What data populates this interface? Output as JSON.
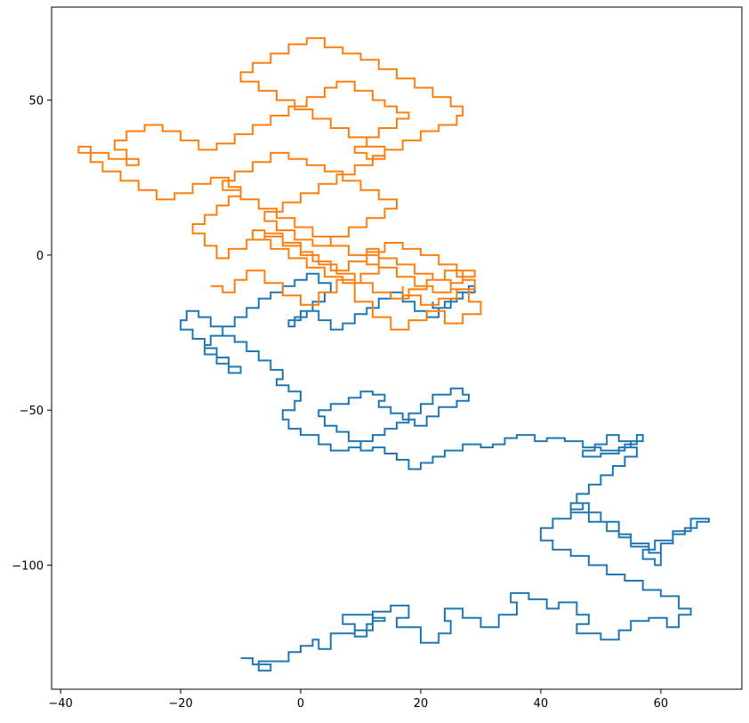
{
  "chart_data": {
    "type": "line",
    "title": "",
    "xlabel": "",
    "ylabel": "",
    "xlim": [
      -41.5,
      73.5
    ],
    "ylim": [
      -140,
      80
    ],
    "xticks": [
      -40,
      -20,
      0,
      20,
      40,
      60
    ],
    "yticks": [
      -100,
      -50,
      0,
      50
    ],
    "grid": false,
    "legend": "none",
    "description": "Two 2-D lattice random walks (unit steps on a square grid), drawn as connected polylines.",
    "series": [
      {
        "color": "#1f77b4",
        "x": [
          -10,
          -8,
          -5,
          -7,
          -2,
          0,
          2,
          3,
          5,
          9,
          7,
          12,
          14,
          12,
          9,
          11,
          12,
          15,
          18,
          16,
          20,
          23,
          25,
          24,
          27,
          30,
          33,
          36,
          35,
          38,
          41,
          43,
          46,
          48,
          46,
          50,
          53,
          55,
          58,
          61,
          63,
          65,
          63,
          60,
          57,
          54,
          51,
          48,
          45,
          42,
          40,
          42,
          45,
          47,
          45,
          48,
          51,
          53,
          55,
          58,
          60,
          62,
          64,
          66,
          68,
          65,
          62,
          59,
          57,
          59,
          60,
          58,
          55,
          53,
          50,
          48,
          46,
          48,
          50,
          52,
          54,
          56,
          55,
          53,
          51,
          49,
          47,
          50,
          53,
          55,
          57,
          56,
          54,
          50,
          47,
          44,
          41,
          39,
          36,
          34,
          32,
          30,
          27,
          24,
          22,
          20,
          18,
          16,
          14,
          12,
          10,
          8,
          6,
          4,
          3,
          5,
          8,
          10,
          12,
          14,
          13,
          15,
          17,
          19,
          21,
          23,
          26,
          28,
          27,
          25,
          22,
          20,
          18,
          16,
          14,
          12,
          10,
          8,
          5,
          3,
          0,
          -2,
          -3,
          -1,
          0,
          -2,
          -4,
          -3,
          -5,
          -7,
          -9,
          -11,
          -13,
          -15,
          -17,
          -19,
          -20,
          -18,
          -16,
          -14,
          -12,
          -10,
          -12,
          -14,
          -16,
          -15,
          -13,
          -11,
          -9,
          -7,
          -5,
          -3,
          -1,
          1,
          3,
          5,
          4,
          2,
          0,
          -2,
          -1,
          1,
          3,
          5,
          7,
          9,
          11,
          13,
          15,
          17,
          19,
          21,
          23,
          25,
          27,
          29,
          28,
          26,
          24,
          22
        ],
        "y": [
          -130,
          -132,
          -134,
          -131,
          -128,
          -126,
          -124,
          -127,
          -122,
          -119,
          -116,
          -118,
          -117,
          -121,
          -123,
          -119,
          -115,
          -113,
          -117,
          -120,
          -125,
          -122,
          -118,
          -114,
          -117,
          -120,
          -116,
          -112,
          -109,
          -111,
          -114,
          -112,
          -116,
          -119,
          -122,
          -124,
          -121,
          -118,
          -117,
          -120,
          -116,
          -114,
          -110,
          -108,
          -105,
          -103,
          -100,
          -97,
          -95,
          -92,
          -88,
          -85,
          -82,
          -80,
          -83,
          -86,
          -89,
          -91,
          -94,
          -96,
          -93,
          -90,
          -88,
          -86,
          -85,
          -89,
          -92,
          -95,
          -98,
          -100,
          -96,
          -93,
          -90,
          -86,
          -83,
          -80,
          -77,
          -74,
          -71,
          -68,
          -65,
          -62,
          -60,
          -58,
          -61,
          -63,
          -65,
          -64,
          -62,
          -60,
          -58,
          -61,
          -63,
          -62,
          -60,
          -59,
          -60,
          -58,
          -59,
          -61,
          -62,
          -61,
          -63,
          -65,
          -67,
          -69,
          -66,
          -64,
          -62,
          -63,
          -60,
          -57,
          -55,
          -52,
          -50,
          -48,
          -46,
          -44,
          -45,
          -47,
          -49,
          -51,
          -53,
          -55,
          -52,
          -49,
          -47,
          -45,
          -43,
          -45,
          -48,
          -51,
          -54,
          -56,
          -58,
          -60,
          -62,
          -63,
          -61,
          -58,
          -56,
          -53,
          -50,
          -47,
          -44,
          -42,
          -40,
          -37,
          -34,
          -31,
          -28,
          -26,
          -23,
          -20,
          -18,
          -21,
          -24,
          -27,
          -30,
          -33,
          -36,
          -38,
          -35,
          -32,
          -29,
          -26,
          -23,
          -20,
          -17,
          -14,
          -12,
          -10,
          -8,
          -6,
          -9,
          -12,
          -15,
          -18,
          -21,
          -23,
          -20,
          -18,
          -21,
          -24,
          -22,
          -19,
          -17,
          -14,
          -12,
          -15,
          -18,
          -20,
          -17,
          -14,
          -12,
          -10,
          -12,
          -15,
          -17,
          -15
        ]
      },
      {
        "color": "#ff7f0e",
        "x": [
          -15,
          -13,
          -11,
          -9,
          -6,
          -3,
          0,
          3,
          6,
          9,
          12,
          15,
          18,
          21,
          24,
          27,
          30,
          28,
          25,
          22,
          19,
          16,
          13,
          11,
          13,
          16,
          19,
          22,
          25,
          27,
          29,
          26,
          23,
          20,
          17,
          14,
          11,
          8,
          5,
          2,
          0,
          -3,
          -6,
          -9,
          -12,
          -14,
          -16,
          -18,
          -16,
          -14,
          -12,
          -10,
          -12,
          -15,
          -18,
          -21,
          -24,
          -27,
          -30,
          -33,
          -35,
          -37,
          -35,
          -32,
          -29,
          -27,
          -29,
          -31,
          -29,
          -26,
          -23,
          -20,
          -17,
          -14,
          -11,
          -8,
          -5,
          -2,
          1,
          4,
          6,
          9,
          12,
          14,
          16,
          18,
          16,
          13,
          11,
          9,
          11,
          14,
          17,
          20,
          23,
          26,
          27,
          25,
          22,
          19,
          16,
          13,
          10,
          7,
          4,
          1,
          -2,
          -5,
          -8,
          -10,
          -7,
          -4,
          -1,
          2,
          5,
          8,
          11,
          14,
          12,
          9,
          6,
          3,
          0,
          -3,
          -6,
          -4,
          -1,
          2,
          5,
          8,
          11,
          14,
          16,
          13,
          10,
          7,
          4,
          1,
          -2,
          -5,
          -8,
          -11,
          -13,
          -10,
          -7,
          -4,
          -1,
          2,
          5,
          8,
          11,
          13,
          10,
          7,
          4,
          1,
          -2,
          -5,
          -8,
          -6,
          -3,
          0,
          3,
          6,
          9,
          12,
          15,
          18,
          21,
          24,
          27,
          29,
          26,
          23,
          20,
          17
        ],
        "y": [
          -10,
          -12,
          -8,
          -5,
          -9,
          -13,
          -16,
          -12,
          -8,
          -15,
          -20,
          -24,
          -21,
          -18,
          -22,
          -19,
          -15,
          -11,
          -8,
          -6,
          -3,
          -1,
          2,
          0,
          -4,
          -7,
          -10,
          -12,
          -9,
          -5,
          -7,
          -3,
          0,
          2,
          4,
          1,
          -2,
          -5,
          -2,
          1,
          4,
          7,
          5,
          2,
          -1,
          3,
          7,
          10,
          13,
          16,
          19,
          22,
          25,
          23,
          20,
          18,
          21,
          24,
          27,
          30,
          33,
          35,
          33,
          31,
          29,
          31,
          34,
          37,
          40,
          42,
          40,
          37,
          34,
          36,
          39,
          42,
          45,
          48,
          51,
          54,
          56,
          53,
          50,
          48,
          46,
          44,
          41,
          38,
          35,
          33,
          31,
          34,
          37,
          40,
          42,
          45,
          48,
          51,
          54,
          57,
          60,
          63,
          65,
          67,
          70,
          68,
          65,
          62,
          59,
          56,
          53,
          50,
          47,
          44,
          41,
          38,
          35,
          32,
          29,
          26,
          23,
          20,
          17,
          14,
          11,
          8,
          5,
          3,
          6,
          9,
          12,
          15,
          18,
          21,
          24,
          27,
          29,
          31,
          33,
          30,
          27,
          24,
          21,
          18,
          15,
          12,
          9,
          6,
          3,
          0,
          -3,
          -6,
          -9,
          -7,
          -4,
          -1,
          2,
          5,
          8,
          6,
          3,
          0,
          -3,
          -6,
          -9,
          -12,
          -14,
          -11,
          -8,
          -5,
          -8,
          -11,
          -14,
          -16,
          -13,
          -10
        ]
      }
    ]
  }
}
